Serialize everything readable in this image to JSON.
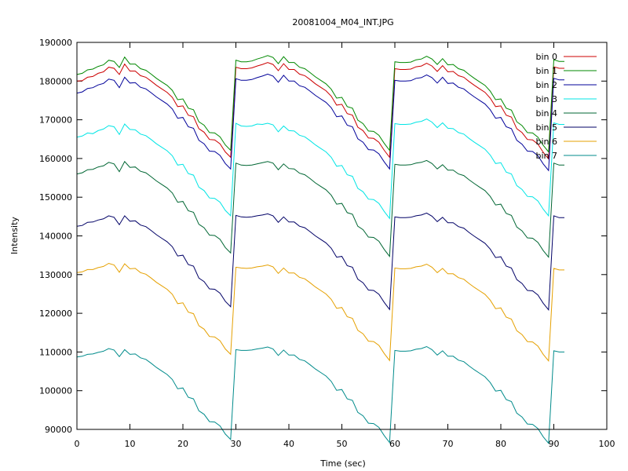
{
  "chart_data": {
    "type": "line",
    "title": "20081004_M04_INT.JPG",
    "xlabel": "Time (sec)",
    "ylabel": "Intensity",
    "xlim": [
      0,
      100
    ],
    "ylim": [
      90000,
      190000
    ],
    "xticks": [
      0,
      10,
      20,
      30,
      40,
      50,
      60,
      70,
      80,
      90,
      100
    ],
    "yticks": [
      90000,
      100000,
      110000,
      120000,
      130000,
      140000,
      150000,
      160000,
      170000,
      180000,
      190000
    ],
    "grid": false,
    "legend_position": "top-right",
    "x": [
      0,
      1,
      2,
      3,
      4,
      5,
      6,
      7,
      8,
      9,
      10,
      11,
      12,
      13,
      14,
      15,
      16,
      17,
      18,
      19,
      20,
      21,
      22,
      23,
      24,
      25,
      26,
      27,
      28,
      29,
      30,
      31,
      32,
      33,
      34,
      35,
      36,
      37,
      38,
      39,
      40,
      41,
      42,
      43,
      44,
      45,
      46,
      47,
      48,
      49,
      50,
      51,
      52,
      53,
      54,
      55,
      56,
      57,
      58,
      59,
      60,
      61,
      62,
      63,
      64,
      65,
      66,
      67,
      68,
      69,
      70,
      71,
      72,
      73,
      74,
      75,
      76,
      77,
      78,
      79,
      80,
      81,
      82,
      83,
      84,
      85,
      86,
      87,
      88,
      89,
      90,
      91,
      92
    ],
    "series": [
      {
        "name": "bin 0",
        "color": "#cc0000",
        "values": [
          180000,
          180100,
          181000,
          181200,
          182000,
          182400,
          183600,
          183300,
          181700,
          184400,
          182600,
          182600,
          181400,
          181000,
          180000,
          178900,
          178000,
          177100,
          175800,
          173400,
          173600,
          171200,
          170800,
          167700,
          166800,
          164900,
          164800,
          163800,
          161700,
          160300,
          183600,
          183200,
          183200,
          183400,
          183900,
          184300,
          184800,
          184300,
          182700,
          184500,
          183000,
          183000,
          181800,
          181400,
          180400,
          179300,
          178400,
          177500,
          176100,
          173800,
          174000,
          171600,
          171200,
          168100,
          167200,
          165300,
          165200,
          164200,
          162100,
          160300,
          183200,
          183000,
          183000,
          183100,
          183700,
          183900,
          184600,
          183900,
          182500,
          184000,
          182400,
          182500,
          181400,
          181000,
          179900,
          178900,
          178000,
          177100,
          175600,
          173400,
          173600,
          171200,
          170700,
          167700,
          166700,
          164900,
          164800,
          163700,
          161600,
          159900,
          183700,
          183300,
          183300
        ]
      },
      {
        "name": "bin 1",
        "color": "#008800",
        "values": [
          181700,
          182000,
          182900,
          183100,
          183800,
          184200,
          185400,
          185100,
          183500,
          186200,
          184400,
          184400,
          183200,
          182800,
          181800,
          180700,
          179800,
          178900,
          177600,
          175200,
          175400,
          173000,
          172600,
          169500,
          168600,
          166700,
          166600,
          165600,
          163500,
          162100,
          185400,
          185000,
          185000,
          185200,
          185700,
          186100,
          186600,
          186100,
          184500,
          186300,
          184800,
          184800,
          183600,
          183200,
          182200,
          181100,
          180200,
          179300,
          177900,
          175600,
          175800,
          173400,
          173000,
          169900,
          169000,
          167100,
          167000,
          166000,
          163900,
          162100,
          185000,
          184800,
          184800,
          184900,
          185500,
          185700,
          186400,
          185700,
          184300,
          185800,
          184200,
          184300,
          183200,
          182800,
          181700,
          180700,
          179800,
          178900,
          177400,
          175200,
          175400,
          173000,
          172500,
          169500,
          168500,
          166700,
          166600,
          165500,
          163400,
          161700,
          185500,
          185100,
          185100
        ]
      },
      {
        "name": "bin 2",
        "color": "#000099",
        "values": [
          176900,
          177200,
          178100,
          178300,
          179000,
          179400,
          180500,
          180200,
          178300,
          181000,
          179500,
          179600,
          178400,
          178000,
          177000,
          175900,
          175000,
          174100,
          172800,
          170400,
          170600,
          168200,
          167800,
          164700,
          163800,
          161900,
          161800,
          160800,
          158700,
          157300,
          180600,
          180200,
          180200,
          180400,
          180900,
          181300,
          181800,
          181300,
          179700,
          181500,
          180000,
          180000,
          178800,
          178400,
          177400,
          176300,
          175400,
          174500,
          173100,
          170800,
          171000,
          168600,
          168200,
          165100,
          164200,
          162300,
          162200,
          161200,
          159100,
          157300,
          180200,
          180000,
          180000,
          180100,
          180700,
          180900,
          181600,
          180900,
          179500,
          181000,
          179400,
          179500,
          178400,
          178000,
          176900,
          175900,
          175000,
          174100,
          172600,
          170400,
          170600,
          168200,
          167700,
          164700,
          163700,
          161900,
          161800,
          160700,
          158600,
          156900,
          180700,
          180300,
          180300
        ]
      },
      {
        "name": "bin 3",
        "color": "#00e5e5",
        "values": [
          165500,
          165800,
          166600,
          166400,
          167200,
          167600,
          168500,
          168200,
          166200,
          168900,
          167500,
          167400,
          166300,
          165900,
          164900,
          163800,
          162900,
          162000,
          160700,
          158300,
          158500,
          156100,
          155700,
          152600,
          151700,
          149800,
          149700,
          148700,
          146600,
          145200,
          169100,
          168400,
          168300,
          168400,
          168900,
          168800,
          169100,
          168700,
          166900,
          168400,
          167200,
          167100,
          166000,
          165600,
          164600,
          163500,
          162600,
          161700,
          160300,
          158000,
          158200,
          155800,
          155400,
          152300,
          151400,
          149500,
          149400,
          148400,
          146300,
          144500,
          169000,
          168800,
          168800,
          168900,
          169400,
          169600,
          170200,
          169400,
          168000,
          169200,
          167800,
          167700,
          166700,
          166300,
          165200,
          164200,
          163300,
          162400,
          160900,
          158700,
          158900,
          156500,
          156000,
          153000,
          152000,
          150200,
          150100,
          149000,
          146900,
          145200,
          169200,
          168800,
          168800
        ]
      },
      {
        "name": "bin 4",
        "color": "#006633",
        "values": [
          156000,
          156300,
          157100,
          157200,
          157800,
          158100,
          159000,
          158600,
          156600,
          159200,
          157700,
          157800,
          156700,
          156300,
          155300,
          154200,
          153300,
          152400,
          151100,
          148700,
          148900,
          146500,
          146100,
          143000,
          142100,
          140200,
          140100,
          139100,
          137000,
          135600,
          158800,
          158300,
          158200,
          158300,
          158600,
          158900,
          159200,
          158800,
          157100,
          158600,
          157400,
          157300,
          156200,
          155800,
          154800,
          153700,
          152800,
          151900,
          150500,
          148200,
          148400,
          146000,
          145600,
          142500,
          141600,
          139700,
          139600,
          138600,
          136500,
          134700,
          158500,
          158300,
          158300,
          158400,
          158800,
          159000,
          159500,
          158700,
          157300,
          158400,
          157000,
          157000,
          156000,
          155600,
          154500,
          153500,
          152600,
          151700,
          150200,
          148000,
          148200,
          145800,
          145300,
          142300,
          141300,
          139500,
          139400,
          138300,
          136200,
          134500,
          158800,
          158300,
          158300
        ]
      },
      {
        "name": "bin 5",
        "color": "#000066",
        "values": [
          142500,
          142700,
          143500,
          143600,
          144100,
          144400,
          145200,
          144800,
          142900,
          145200,
          143800,
          143900,
          142800,
          142400,
          141400,
          140300,
          139400,
          138500,
          137200,
          134800,
          135000,
          132600,
          132200,
          129100,
          128200,
          126300,
          126200,
          125200,
          123100,
          121700,
          145300,
          144900,
          144800,
          144900,
          145200,
          145400,
          145700,
          145200,
          143500,
          144900,
          143600,
          143600,
          142500,
          142100,
          141100,
          140000,
          139100,
          138200,
          136800,
          134500,
          134700,
          132300,
          131900,
          128800,
          127900,
          126000,
          125900,
          124900,
          122800,
          121000,
          144900,
          144700,
          144700,
          144800,
          145200,
          145400,
          145900,
          145100,
          143700,
          144800,
          143400,
          143400,
          142400,
          142000,
          140900,
          139900,
          139000,
          138100,
          136600,
          134400,
          134600,
          132200,
          131700,
          128700,
          127700,
          125900,
          125800,
          124700,
          122600,
          120900,
          145200,
          144700,
          144700
        ]
      },
      {
        "name": "bin 6",
        "color": "#e5a000",
        "values": [
          130500,
          130700,
          131300,
          131300,
          131800,
          132100,
          132900,
          132500,
          130600,
          132800,
          131500,
          131600,
          130500,
          130100,
          129100,
          128000,
          127100,
          126200,
          124900,
          122500,
          122700,
          120300,
          119900,
          116800,
          115900,
          114000,
          113900,
          112900,
          110800,
          109400,
          131900,
          131700,
          131600,
          131700,
          132000,
          132200,
          132500,
          132000,
          130300,
          131700,
          130400,
          130400,
          129300,
          128900,
          127900,
          126800,
          125900,
          125000,
          123600,
          121300,
          121500,
          119100,
          118700,
          115600,
          114700,
          112800,
          112700,
          111700,
          109600,
          107800,
          131700,
          131500,
          131500,
          131600,
          132000,
          132200,
          132700,
          131900,
          130500,
          131600,
          130200,
          130200,
          129200,
          128800,
          127700,
          126700,
          125800,
          124900,
          123400,
          121200,
          121400,
          119000,
          118500,
          115500,
          114500,
          112700,
          112600,
          111500,
          109400,
          107700,
          131600,
          131200,
          131200
        ]
      },
      {
        "name": "bin 7",
        "color": "#008b8b",
        "values": [
          108700,
          108900,
          109400,
          109500,
          109900,
          110200,
          110900,
          110500,
          108800,
          110600,
          109400,
          109500,
          108500,
          108100,
          107100,
          106000,
          105100,
          104200,
          102900,
          100500,
          100700,
          98300,
          97900,
          94800,
          93900,
          92000,
          91900,
          90900,
          88800,
          87400,
          110600,
          110400,
          110400,
          110500,
          110800,
          111000,
          111300,
          110800,
          109100,
          110500,
          109200,
          109200,
          108100,
          107700,
          106700,
          105600,
          104700,
          103800,
          102400,
          100100,
          100300,
          97900,
          97500,
          94400,
          93500,
          91600,
          91500,
          90500,
          88400,
          86600,
          110400,
          110200,
          110200,
          110300,
          110700,
          110900,
          111400,
          110600,
          109200,
          110300,
          108900,
          108900,
          107900,
          107500,
          106400,
          105400,
          104500,
          103600,
          102100,
          99900,
          100100,
          97700,
          97200,
          94200,
          93200,
          91400,
          91300,
          90200,
          88100,
          86400,
          110300,
          110000,
          110000
        ]
      }
    ]
  }
}
